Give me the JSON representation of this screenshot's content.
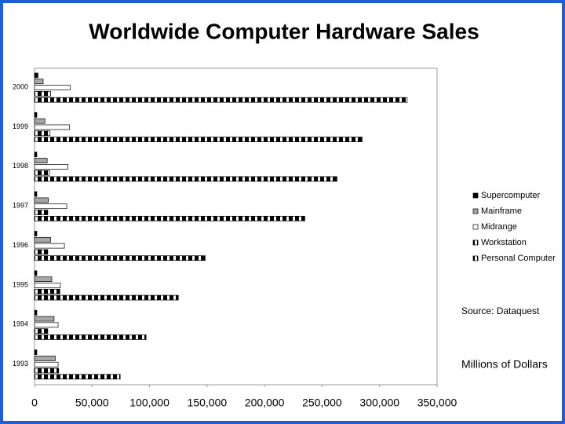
{
  "chart_data": {
    "type": "hbar",
    "title": "Worldwide Computer Hardware Sales",
    "categories": [
      "2000",
      "1999",
      "1998",
      "1997",
      "1996",
      "1995",
      "1994",
      "1993"
    ],
    "series": [
      {
        "name": "Supercomputer",
        "color": "#000000",
        "pattern": "solid",
        "values": [
          3000,
          2000,
          2000,
          2000,
          2000,
          2000,
          2000,
          2000
        ]
      },
      {
        "name": "Mainframe",
        "color": "#a6a6a6",
        "pattern": "solid",
        "values": [
          7500,
          9000,
          11000,
          12000,
          14000,
          15000,
          17000,
          18000
        ]
      },
      {
        "name": "Midrange",
        "color": "#ffffff",
        "pattern": "solid",
        "values": [
          31000,
          30500,
          29000,
          28000,
          26000,
          22500,
          20500,
          20500
        ]
      },
      {
        "name": "Workstation",
        "color": "#000000",
        "pattern": "striped",
        "values": [
          14000,
          13500,
          13000,
          11500,
          11500,
          22000,
          11500,
          21000
        ]
      },
      {
        "name": "Personal Computer",
        "color": "#000000",
        "pattern": "striped",
        "values": [
          324000,
          285000,
          263000,
          235000,
          148500,
          125000,
          97000,
          74500
        ]
      }
    ],
    "xlim": [
      0,
      350000
    ],
    "xticks": [
      0,
      {
        "value": 50000,
        "label": "50,000"
      },
      {
        "value": 100000,
        "label": "100,000"
      },
      {
        "value": 150000,
        "label": "150,000"
      },
      {
        "value": 200000,
        "label": "200,000"
      },
      {
        "value": 250000,
        "label": "250,000"
      },
      {
        "value": 300000,
        "label": "300,000"
      },
      {
        "value": 350000,
        "label": "350,000"
      }
    ],
    "source": "Source: Dataquest",
    "unit_label": "Millions of Dollars"
  }
}
